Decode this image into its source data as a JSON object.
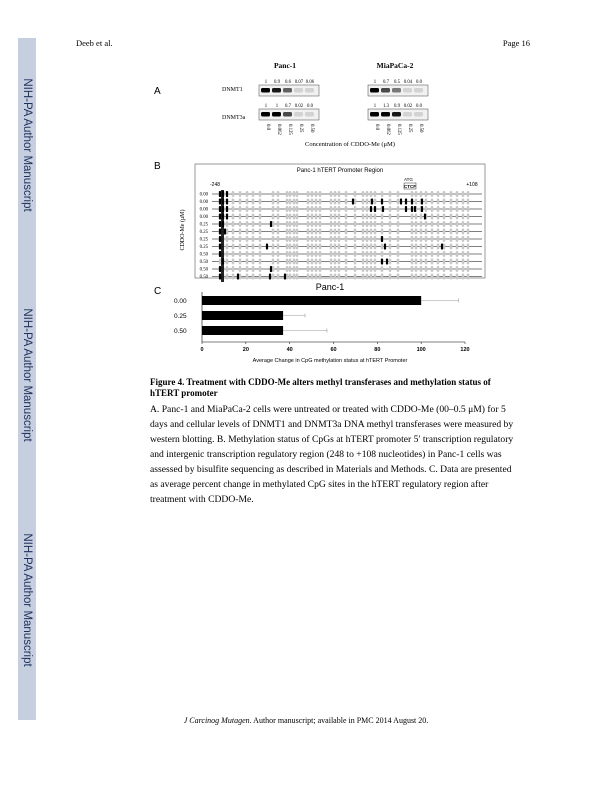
{
  "header": {
    "left": "Deeb et al.",
    "right": "Page 16"
  },
  "sidebar_label": "NIH-PA Author Manuscript",
  "panel_a": {
    "letter": "A",
    "cell_lines": [
      "Panc-1",
      "MiaPaCa-2"
    ],
    "rows": [
      "DNMT1",
      "DNMT3a"
    ],
    "dnmt1_values": {
      "panc1": [
        "1",
        "0.9",
        "0.6",
        "0.07",
        "0.06"
      ],
      "miapaca2": [
        "1",
        "0.7",
        "0.5",
        "0.04",
        "0.0"
      ]
    },
    "dnmt3a_values": {
      "panc1": [
        "1",
        "1",
        "0.7",
        "0.02",
        "0.0"
      ],
      "miapaca2": [
        "1",
        "1.3",
        "0.9",
        "0.02",
        "0.0"
      ]
    },
    "concentrations": [
      "0.0",
      "0.062",
      "0.125",
      "0.25",
      "0.50"
    ],
    "xlabel": "Concentration of CDDO-Me (μM)"
  },
  "panel_b": {
    "letter": "B",
    "title": "Panc-1 hTERT Promoter Region",
    "start_label": "-248",
    "end_label": "+108",
    "ato_label": "ATG",
    "ctcf_label": "CTCF",
    "ylabel": "CDDO-Me (μM)",
    "row_labels": [
      "0.00",
      "0.00",
      "0.00",
      "0.00",
      "0.25",
      "0.25",
      "0.25",
      "0.25",
      "0.50",
      "0.50",
      "0.50",
      "0.50"
    ]
  },
  "panel_c": {
    "letter": "C",
    "title": "Panc-1",
    "xlabel": "Average Change in CpG methylation status at hTERT Promoter",
    "chart_data": {
      "type": "bar",
      "orientation": "horizontal",
      "categories": [
        "0.00",
        "0.25",
        "0.50"
      ],
      "values": [
        100,
        37,
        37
      ],
      "errors": [
        17,
        10,
        20
      ],
      "title": "Panc-1",
      "xlabel": "Average Change in CpG methylation status at hTERT Promoter",
      "xlim": [
        0,
        120
      ],
      "xticks": [
        "0",
        "20",
        "40",
        "60",
        "80",
        "100",
        "120"
      ],
      "bar_color": "#000000"
    }
  },
  "caption": {
    "title": "Figure 4. Treatment with CDDO-Me alters methyl transferases and methylation status of hTERT promoter",
    "body": "A. Panc-1 and MiaPaCa-2 cells were untreated or treated with CDDO-Me (00–0.5 μM) for 5 days and cellular levels of DNMT1 and DNMT3a DNA methyl transferases were measured by western blotting. B. Methylation status of CpGs at hTERT promoter 5′ transcription regulatory and intergenic transcription regulatory region (248 to +108 nucleotides) in Panc-1 cells was assessed by bisulfite sequencing as described in Materials and Methods. C. Data are presented as average percent change in methylated CpG sites in the hTERT regulatory region after treatment with CDDO-Me."
  },
  "footer": {
    "journal": "J Carcinog Mutagen",
    "rest": ". Author manuscript; available in PMC 2014 August 20."
  }
}
